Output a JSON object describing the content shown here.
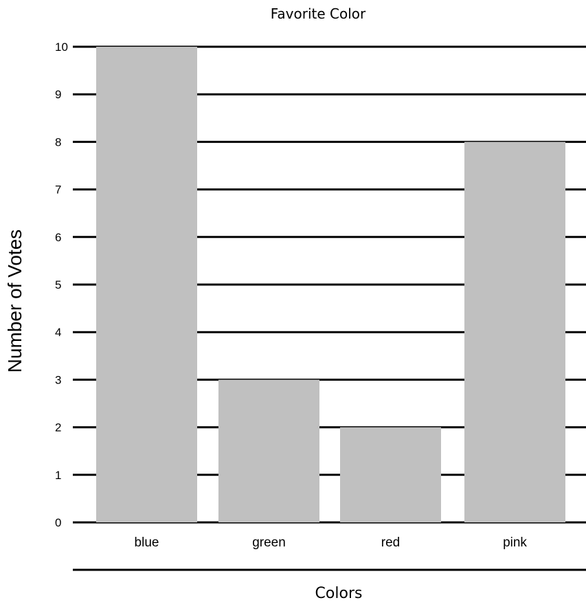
{
  "chart_data": {
    "type": "bar",
    "title": "Favorite Color",
    "xlabel": "Colors",
    "ylabel": "Number of Votes",
    "categories": [
      "blue",
      "green",
      "red",
      "pink"
    ],
    "values": [
      10,
      3,
      2,
      8
    ],
    "ylim": [
      0,
      10
    ],
    "yticks": [
      "0",
      "1",
      "2",
      "3",
      "4",
      "5",
      "6",
      "7",
      "8",
      "9",
      "10"
    ],
    "grid": true,
    "legend": "none",
    "colors": {
      "bar": "#c0c0c0",
      "grid": "#000000",
      "text": "#000000"
    }
  }
}
